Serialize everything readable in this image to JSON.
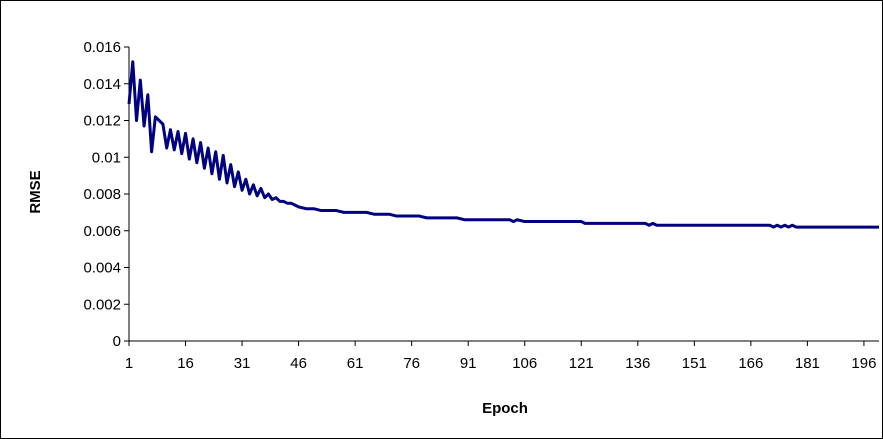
{
  "chart_data": {
    "type": "line",
    "title": "",
    "xlabel": "Epoch",
    "ylabel": "RMSE",
    "xlim": [
      1,
      200
    ],
    "ylim": [
      0,
      0.016
    ],
    "y_ticks": [
      0,
      0.002,
      0.004,
      0.006,
      0.008,
      0.01,
      0.012,
      0.014,
      0.016
    ],
    "y_tick_labels": [
      "0",
      "0.002",
      "0.004",
      "0.006",
      "0.008",
      "0.01",
      "0.012",
      "0.014",
      "0.016"
    ],
    "x_ticks": [
      1,
      16,
      31,
      46,
      61,
      76,
      91,
      106,
      121,
      136,
      151,
      166,
      181,
      196
    ],
    "x_tick_labels": [
      "1",
      "16",
      "31",
      "46",
      "61",
      "76",
      "91",
      "106",
      "121",
      "136",
      "151",
      "166",
      "181",
      "196"
    ],
    "grid": false,
    "legend": "none",
    "colors": {
      "line": "#000080",
      "axis": "#000000",
      "frame": "#000000"
    },
    "series": [
      {
        "x": [
          1,
          2,
          3,
          4,
          5,
          6,
          7,
          8,
          9,
          10,
          11,
          12,
          13,
          14,
          15,
          16,
          17,
          18,
          19,
          20,
          21,
          22,
          23,
          24,
          25,
          26,
          27,
          28,
          29,
          30,
          31,
          32,
          33,
          34,
          35,
          36,
          37,
          38,
          39,
          40,
          41,
          42,
          43,
          44,
          45,
          46,
          48,
          50,
          52,
          54,
          56,
          58,
          60,
          62,
          64,
          66,
          68,
          70,
          72,
          74,
          76,
          78,
          80,
          82,
          84,
          86,
          88,
          90,
          93,
          96,
          99,
          102,
          103,
          104,
          106,
          110,
          114,
          118,
          121,
          122,
          123,
          126,
          130,
          134,
          138,
          139,
          140,
          141,
          142,
          146,
          150,
          155,
          160,
          165,
          170,
          171,
          172,
          173,
          174,
          175,
          176,
          177,
          178,
          180,
          185,
          190,
          195,
          198,
          200
        ],
        "y": [
          0.0129,
          0.0152,
          0.012,
          0.0142,
          0.0117,
          0.0134,
          0.0103,
          0.0122,
          0.012,
          0.0118,
          0.0105,
          0.0115,
          0.0104,
          0.0114,
          0.0102,
          0.0113,
          0.0099,
          0.011,
          0.0097,
          0.0108,
          0.0094,
          0.0105,
          0.0091,
          0.0103,
          0.0088,
          0.0101,
          0.0086,
          0.0096,
          0.0084,
          0.0092,
          0.0082,
          0.0088,
          0.008,
          0.0085,
          0.0079,
          0.0083,
          0.0078,
          0.008,
          0.0077,
          0.0078,
          0.0076,
          0.0076,
          0.0075,
          0.0075,
          0.0074,
          0.0073,
          0.0072,
          0.0072,
          0.0071,
          0.0071,
          0.0071,
          0.007,
          0.007,
          0.007,
          0.007,
          0.0069,
          0.0069,
          0.0069,
          0.0068,
          0.0068,
          0.0068,
          0.0068,
          0.0067,
          0.0067,
          0.0067,
          0.0067,
          0.0067,
          0.0066,
          0.0066,
          0.0066,
          0.0066,
          0.0066,
          0.0065,
          0.0066,
          0.0065,
          0.0065,
          0.0065,
          0.0065,
          0.0065,
          0.0064,
          0.0064,
          0.0064,
          0.0064,
          0.0064,
          0.0064,
          0.0063,
          0.0064,
          0.0063,
          0.0063,
          0.0063,
          0.0063,
          0.0063,
          0.0063,
          0.0063,
          0.0063,
          0.0063,
          0.0062,
          0.0063,
          0.0062,
          0.0063,
          0.0062,
          0.0063,
          0.0062,
          0.0062,
          0.0062,
          0.0062,
          0.0062,
          0.0062,
          0.0062
        ]
      }
    ]
  }
}
